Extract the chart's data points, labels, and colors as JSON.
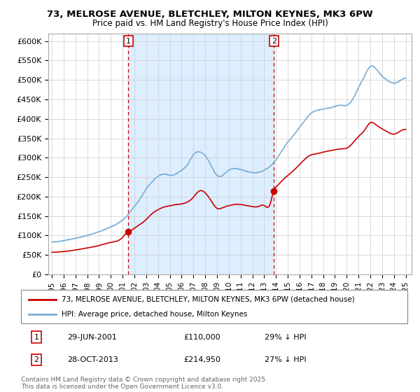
{
  "title_line1": "73, MELROSE AVENUE, BLETCHLEY, MILTON KEYNES, MK3 6PW",
  "title_line2": "Price paid vs. HM Land Registry's House Price Index (HPI)",
  "ylim": [
    0,
    620000
  ],
  "yticks": [
    0,
    50000,
    100000,
    150000,
    200000,
    250000,
    300000,
    350000,
    400000,
    450000,
    500000,
    550000,
    600000
  ],
  "ytick_labels": [
    "£0",
    "£50K",
    "£100K",
    "£150K",
    "£200K",
    "£250K",
    "£300K",
    "£350K",
    "£400K",
    "£450K",
    "£500K",
    "£550K",
    "£600K"
  ],
  "xlim_start": 1994.7,
  "xlim_end": 2025.5,
  "marker1_x": 2001.49,
  "marker1_y": 110000,
  "marker2_x": 2013.83,
  "marker2_y": 214950,
  "legend_line1": "73, MELROSE AVENUE, BLETCHLEY, MILTON KEYNES, MK3 6PW (detached house)",
  "legend_line2": "HPI: Average price, detached house, Milton Keynes",
  "footer": "Contains HM Land Registry data © Crown copyright and database right 2025.\nThis data is licensed under the Open Government Licence v3.0.",
  "red_color": "#cc0000",
  "blue_color": "#7aaed6",
  "shade_color": "#ddeeff",
  "background_color": "#ffffff",
  "grid_color": "#cccccc"
}
